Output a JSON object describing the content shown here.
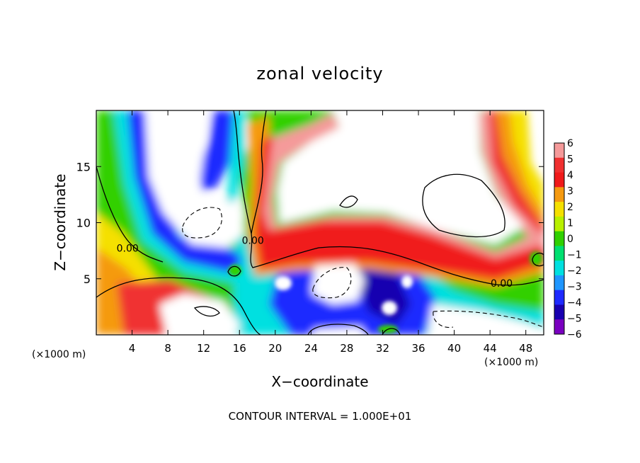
{
  "chart_data": {
    "type": "heatmap",
    "title": "zonal velocity",
    "xlabel": "X−coordinate",
    "ylabel": "Z−coordinate",
    "x_unit_left": "(×1000 m)",
    "x_unit_right": "(×1000 m)",
    "footer": "CONTOUR INTERVAL = 1.000E+01",
    "xlim": [
      0,
      50
    ],
    "ylim": [
      0,
      20
    ],
    "x_ticks": [
      4,
      8,
      12,
      16,
      20,
      24,
      28,
      32,
      36,
      40,
      44,
      48
    ],
    "x_tick_labels": [
      "4",
      "8",
      "12",
      "16",
      "20",
      "24",
      "28",
      "32",
      "36",
      "40",
      "44",
      "48"
    ],
    "y_ticks": [
      5,
      10,
      15
    ],
    "y_tick_labels": [
      "5",
      "10",
      "15"
    ],
    "colorbar": {
      "levels": [
        6,
        5,
        4,
        3,
        2,
        1,
        0,
        -1,
        -2,
        -3,
        -4,
        -5,
        -6
      ],
      "labels": [
        "6",
        "5",
        "4",
        "3",
        "2",
        "1",
        "0",
        "−1",
        "−2",
        "−3",
        "−4",
        "−5",
        "−6"
      ],
      "colors": [
        "#f59a9a",
        "#f03030",
        "#f01a1a",
        "#f59a10",
        "#f5e000",
        "#b8f000",
        "#30d000",
        "#00e070",
        "#00e0e0",
        "#1f96ff",
        "#1e2aff",
        "#1800b0",
        "#7a00c0"
      ]
    },
    "contour_labels": [
      {
        "text": "0.00",
        "x": 3.5,
        "y": 7.4
      },
      {
        "text": "0.00",
        "x": 17.5,
        "y": 8.1
      },
      {
        "text": "0.00",
        "x": 45.3,
        "y": 4.3
      }
    ],
    "legend": "right"
  }
}
